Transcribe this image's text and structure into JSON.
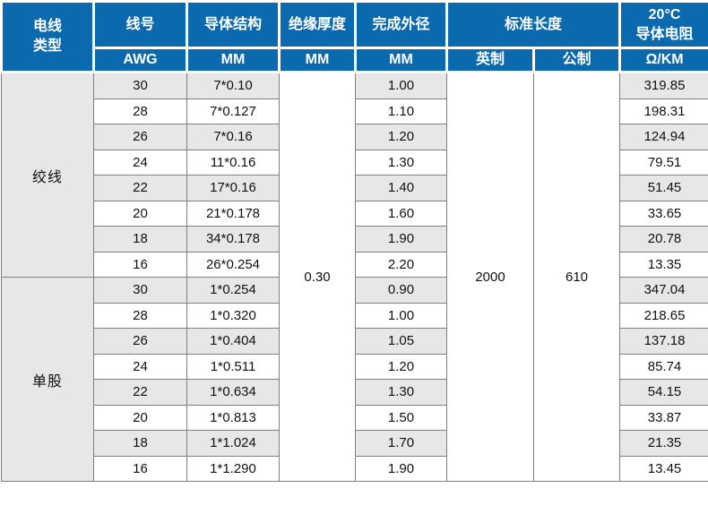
{
  "table": {
    "header": {
      "wire_type": "电线\n类型",
      "columns": [
        {
          "title": "线号",
          "unit": "AWG"
        },
        {
          "title": "导体结构",
          "unit": "MM"
        },
        {
          "title": "绝缘厚度",
          "unit": "MM"
        },
        {
          "title": "完成外径",
          "unit": "MM"
        },
        {
          "title": "标准长度",
          "units": [
            "英制",
            "公制"
          ]
        },
        {
          "title": "20°C\n导体电阻",
          "unit": "Ω/KM"
        }
      ]
    },
    "body": {
      "insulation_thickness_mm": "0.30",
      "standard_length_imperial": "2000",
      "standard_length_metric": "610",
      "groups": [
        {
          "type": "绞线",
          "rows": [
            {
              "awg": "30",
              "conductor": "7*0.10",
              "outer_diameter": "1.00",
              "resistance": "319.85"
            },
            {
              "awg": "28",
              "conductor": "7*0.127",
              "outer_diameter": "1.10",
              "resistance": "198.31"
            },
            {
              "awg": "26",
              "conductor": "7*0.16",
              "outer_diameter": "1.20",
              "resistance": "124.94"
            },
            {
              "awg": "24",
              "conductor": "11*0.16",
              "outer_diameter": "1.30",
              "resistance": "79.51"
            },
            {
              "awg": "22",
              "conductor": "17*0.16",
              "outer_diameter": "1.40",
              "resistance": "51.45"
            },
            {
              "awg": "20",
              "conductor": "21*0.178",
              "outer_diameter": "1.60",
              "resistance": "33.65"
            },
            {
              "awg": "18",
              "conductor": "34*0.178",
              "outer_diameter": "1.90",
              "resistance": "20.78"
            },
            {
              "awg": "16",
              "conductor": "26*0.254",
              "outer_diameter": "2.20",
              "resistance": "13.35"
            }
          ]
        },
        {
          "type": "单股",
          "rows": [
            {
              "awg": "30",
              "conductor": "1*0.254",
              "outer_diameter": "0.90",
              "resistance": "347.04"
            },
            {
              "awg": "28",
              "conductor": "1*0.320",
              "outer_diameter": "1.00",
              "resistance": "218.65"
            },
            {
              "awg": "26",
              "conductor": "1*0.404",
              "outer_diameter": "1.05",
              "resistance": "137.18"
            },
            {
              "awg": "24",
              "conductor": "1*0.511",
              "outer_diameter": "1.20",
              "resistance": "85.74"
            },
            {
              "awg": "22",
              "conductor": "1*0.634",
              "outer_diameter": "1.30",
              "resistance": "54.15"
            },
            {
              "awg": "20",
              "conductor": "1*0.813",
              "outer_diameter": "1.50",
              "resistance": "33.87"
            },
            {
              "awg": "18",
              "conductor": "1*1.024",
              "outer_diameter": "1.70",
              "resistance": "21.35"
            },
            {
              "awg": "16",
              "conductor": "1*1.290",
              "outer_diameter": "1.90",
              "resistance": "13.45"
            }
          ]
        }
      ]
    },
    "colors": {
      "header_bg": "#0a6aad",
      "row_shade": "#e7e7e7",
      "border": "#7f7f7f"
    }
  }
}
